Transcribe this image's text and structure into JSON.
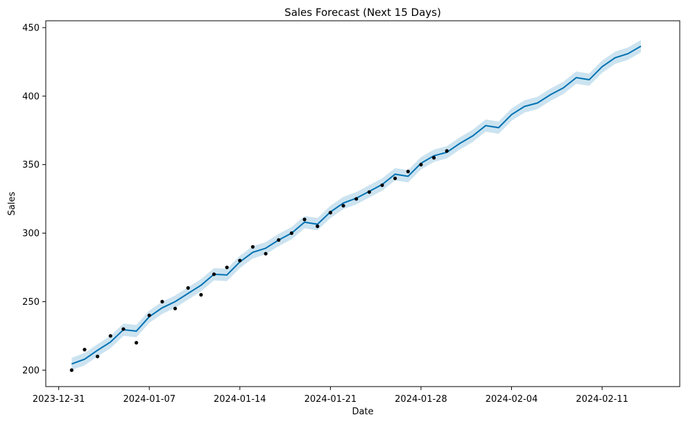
{
  "chart_data": {
    "type": "line",
    "title": "Sales Forecast (Next 15 Days)",
    "xlabel": "Date",
    "ylabel": "Sales",
    "x_start": "2024-01-01",
    "xlim": [
      "2023-12-30",
      "2024-02-17"
    ],
    "ylim": [
      188,
      455
    ],
    "x_ticks": [
      "2023-12-31",
      "2024-01-07",
      "2024-01-14",
      "2024-01-21",
      "2024-01-28",
      "2024-02-04",
      "2024-02-11"
    ],
    "y_ticks": [
      200,
      250,
      300,
      350,
      400,
      450
    ],
    "grid": false,
    "colors": {
      "forecast": "#0072B2",
      "interval": "#0072B2",
      "actual": "#000000"
    },
    "series": [
      {
        "name": "yhat",
        "values": [
          204.5,
          208.0,
          214.5,
          220.5,
          229.5,
          228.5,
          239.0,
          245.5,
          250.0,
          256.0,
          262.0,
          270.0,
          269.5,
          279.0,
          286.0,
          289.0,
          295.0,
          300.0,
          308.0,
          306.5,
          315.5,
          322.0,
          325.5,
          330.5,
          335.5,
          343.0,
          341.5,
          351.0,
          356.5,
          359.0,
          365.5,
          371.0,
          378.5,
          377.0,
          386.5,
          392.5,
          395.0,
          401.0,
          406.0,
          413.5,
          412.0,
          421.5,
          428.0,
          431.0,
          436.5
        ]
      },
      {
        "name": "yhat_upper",
        "values": [
          209.0,
          212.5,
          219.0,
          225.0,
          234.0,
          233.0,
          243.5,
          250.0,
          254.5,
          260.5,
          266.5,
          274.5,
          274.0,
          283.5,
          290.5,
          293.5,
          299.5,
          304.5,
          312.5,
          311.0,
          320.0,
          326.5,
          330.0,
          335.0,
          340.0,
          347.5,
          346.0,
          355.5,
          361.0,
          363.5,
          370.0,
          375.5,
          383.0,
          381.5,
          391.0,
          397.0,
          399.5,
          405.5,
          410.5,
          418.0,
          416.5,
          426.0,
          432.5,
          435.5,
          441.0
        ]
      },
      {
        "name": "yhat_lower",
        "values": [
          200.0,
          203.5,
          210.0,
          216.0,
          225.0,
          224.0,
          234.5,
          241.0,
          245.5,
          251.5,
          257.5,
          265.5,
          265.0,
          274.5,
          281.5,
          284.5,
          290.5,
          295.5,
          303.5,
          302.0,
          311.0,
          317.5,
          321.0,
          326.0,
          331.0,
          338.5,
          337.0,
          346.5,
          352.0,
          354.5,
          361.0,
          366.5,
          374.0,
          372.5,
          382.0,
          388.0,
          390.5,
          396.5,
          401.5,
          409.0,
          407.5,
          417.0,
          423.5,
          426.5,
          432.0
        ]
      },
      {
        "name": "actual",
        "values": [
          200,
          215,
          210,
          225,
          230,
          220,
          240,
          250,
          245,
          260,
          255,
          270,
          275,
          280,
          290,
          285,
          295,
          300,
          310,
          305,
          315,
          320,
          325,
          330,
          335,
          340,
          345,
          350,
          355,
          360
        ]
      }
    ]
  }
}
